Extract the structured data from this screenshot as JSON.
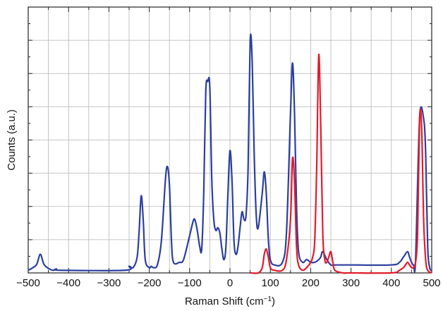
{
  "chart_data": {
    "type": "line",
    "title": "",
    "xlabel": "Raman Shift (cm",
    "xlabel_sup": "−1",
    "xlabel_close": ")",
    "ylabel": "Counts (a.u.)",
    "xlim": [
      -500,
      500
    ],
    "ylim": [
      0,
      1
    ],
    "grid": true,
    "x_ticks": [
      -500,
      -400,
      -300,
      -200,
      -100,
      0,
      100,
      200,
      300,
      400,
      500
    ],
    "x_tick_labels": [
      "−500",
      "−400",
      "−300",
      "−200",
      "−100",
      "0",
      "100",
      "200",
      "300",
      "400",
      "500"
    ],
    "y_ticks_count": 8,
    "series": [
      {
        "color": "#2b3f9e",
        "x": [
          -500,
          -480,
          -470,
          -460,
          -440,
          -430,
          -420,
          -260,
          -250,
          -240,
          -230,
          -225,
          -220,
          -215,
          -210,
          -200,
          -195,
          -190,
          -180,
          -170,
          -160,
          -155,
          -150,
          -145,
          -140,
          -125,
          -115,
          -100,
          -90,
          -85,
          -80,
          -75,
          -70,
          -65,
          -60,
          -55,
          -50,
          -45,
          -40,
          -35,
          -30,
          -25,
          -20,
          -15,
          -10,
          -5,
          0,
          5,
          10,
          15,
          20,
          25,
          30,
          35,
          40,
          45,
          50,
          55,
          60,
          65,
          70,
          80,
          85,
          90,
          95,
          100,
          110,
          130,
          140,
          150,
          155,
          160,
          165,
          170,
          180,
          190,
          200,
          210,
          220,
          225,
          230,
          240,
          250,
          260,
          270,
          300,
          400,
          420,
          430,
          440,
          445,
          450,
          455,
          460,
          470,
          480,
          485,
          490,
          495,
          500
        ],
        "y": [
          0.01,
          0.03,
          0.07,
          0.03,
          0.01,
          0.015,
          0.01,
          0.01,
          0.025,
          0.02,
          0.06,
          0.16,
          0.29,
          0.2,
          0.05,
          0.02,
          0.025,
          0.02,
          0.03,
          0.12,
          0.35,
          0.4,
          0.33,
          0.12,
          0.04,
          0.04,
          0.05,
          0.14,
          0.2,
          0.19,
          0.15,
          0.1,
          0.09,
          0.3,
          0.68,
          0.72,
          0.7,
          0.35,
          0.2,
          0.16,
          0.17,
          0.15,
          0.09,
          0.05,
          0.1,
          0.3,
          0.46,
          0.35,
          0.12,
          0.07,
          0.1,
          0.17,
          0.23,
          0.2,
          0.22,
          0.4,
          0.87,
          0.8,
          0.45,
          0.22,
          0.17,
          0.3,
          0.38,
          0.3,
          0.13,
          0.05,
          0.03,
          0.04,
          0.15,
          0.6,
          0.79,
          0.6,
          0.25,
          0.08,
          0.04,
          0.05,
          0.04,
          0.04,
          0.05,
          0.06,
          0.08,
          0.05,
          0.03,
          0.03,
          0.03,
          0.03,
          0.03,
          0.04,
          0.06,
          0.08,
          0.06,
          0.04,
          0.03,
          0.05,
          0.58,
          0.58,
          0.45,
          0.1,
          0.02,
          0.01
        ]
      },
      {
        "color": "#e21b2c",
        "x": [
          50,
          70,
          80,
          85,
          90,
          95,
          100,
          110,
          130,
          140,
          150,
          155,
          160,
          165,
          170,
          180,
          190,
          200,
          205,
          210,
          215,
          220,
          225,
          230,
          235,
          240,
          245,
          250,
          255,
          260,
          280,
          300,
          400,
          420,
          430,
          435,
          440,
          445,
          450,
          455,
          460,
          465,
          470,
          475,
          480,
          485,
          490,
          500
        ],
        "y": [
          0.0,
          0.0,
          0.02,
          0.07,
          0.09,
          0.06,
          0.02,
          0.01,
          0.01,
          0.05,
          0.2,
          0.43,
          0.34,
          0.1,
          0.03,
          0.01,
          0.02,
          0.04,
          0.06,
          0.12,
          0.4,
          0.82,
          0.55,
          0.15,
          0.05,
          0.04,
          0.06,
          0.08,
          0.04,
          0.01,
          0.0,
          0.0,
          0.0,
          0.01,
          0.02,
          0.03,
          0.04,
          0.03,
          0.02,
          0.02,
          0.04,
          0.15,
          0.58,
          0.55,
          0.2,
          0.05,
          0.01,
          0.0
        ]
      }
    ]
  }
}
